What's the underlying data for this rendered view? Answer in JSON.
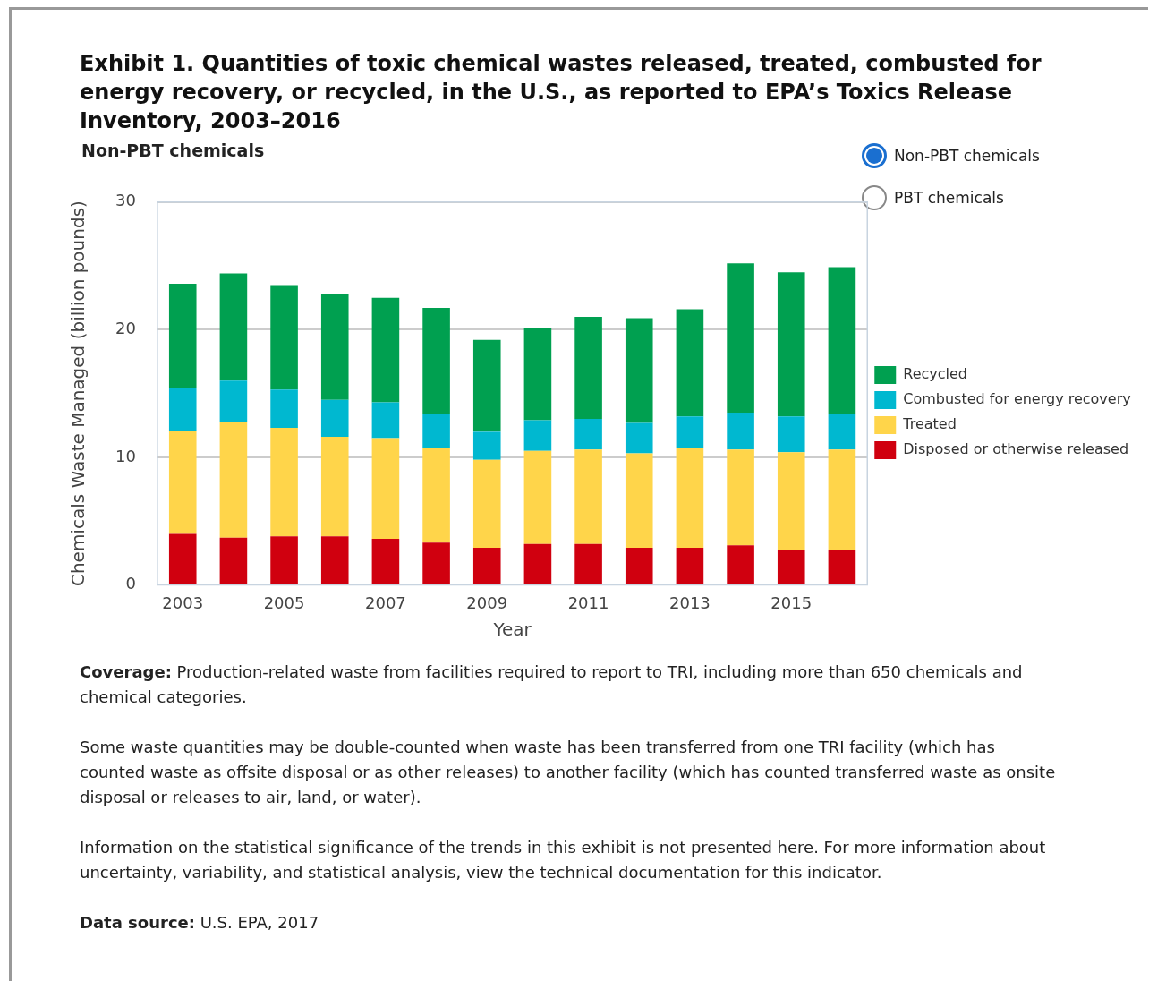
{
  "chart_data": {
    "type": "bar",
    "title": "Exhibit 1. Quantities of toxic chemical wastes released, treated, combusted for energy recovery, or recycled, in the U.S., as reported to EPA’s Toxics Release Inventory, 2003–2016",
    "subtitle": "Non-PBT chemicals",
    "xlabel": "Year",
    "ylabel": "Chemicals Waste Managed (billion pounds)",
    "categories": [
      "2003",
      null,
      "2005",
      null,
      "2007",
      null,
      "2009",
      null,
      "2011",
      null,
      "2013",
      null,
      "2015",
      null
    ],
    "stacked": true,
    "series": [
      {
        "name": "Disposed or otherwise released",
        "color": "#d0000f",
        "values": [
          4.0,
          3.7,
          3.8,
          3.8,
          3.6,
          3.3,
          2.9,
          3.2,
          3.2,
          2.9,
          2.9,
          3.1,
          2.7,
          2.7
        ]
      },
      {
        "name": "Treated",
        "color": "#ffd54a",
        "values": [
          8.1,
          9.1,
          8.5,
          7.8,
          7.9,
          7.4,
          6.9,
          7.3,
          7.4,
          7.4,
          7.8,
          7.5,
          7.7,
          7.9
        ]
      },
      {
        "name": "Combusted for energy recovery",
        "color": "#00b8d0",
        "values": [
          3.3,
          3.2,
          3.0,
          2.9,
          2.8,
          2.7,
          2.2,
          2.4,
          2.4,
          2.4,
          2.5,
          2.9,
          2.8,
          2.8
        ]
      },
      {
        "name": "Recycled",
        "color": "#00a050",
        "values": [
          8.2,
          8.4,
          8.2,
          8.3,
          8.2,
          8.3,
          7.2,
          7.2,
          8.0,
          8.2,
          8.4,
          11.7,
          11.3,
          11.5
        ]
      }
    ],
    "ylim": [
      0,
      30
    ],
    "yticks": [
      0,
      10,
      20,
      30
    ],
    "grid": "y",
    "legend": "right",
    "annotations": [
      "Non-PBT chemicals",
      "PBT chemicals",
      "Coverage: Production-related waste from facilities required to report to TRI, including more than 650 chemicals and chemical categories.",
      "Some waste quantities may be double-counted when waste has been transferred from one TRI facility (which has counted waste as offsite disposal or as other releases) to another facility (which has counted transferred waste as onsite disposal or releases to air, land, or water).",
      "Information on the statistical significance of the trends in this exhibit is not presented here. For more information about uncertainty, variability, and statistical analysis, view the technical documentation for this indicator.",
      "Data source: U.S. EPA, 2017"
    ]
  }
}
